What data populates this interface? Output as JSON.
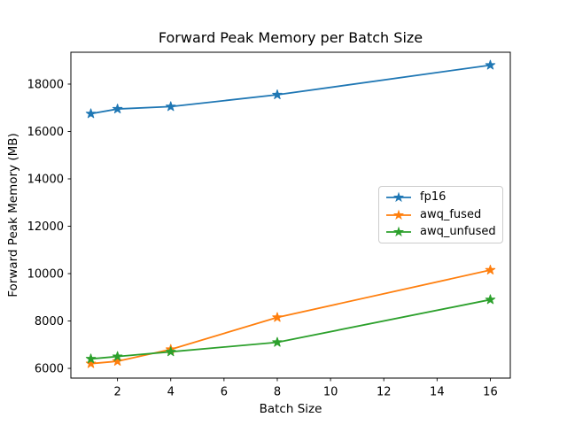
{
  "chart_data": {
    "type": "line",
    "title": "Forward Peak Memory per Batch Size",
    "xlabel": "Batch Size",
    "ylabel": "Forward Peak Memory (MB)",
    "x": [
      1,
      2,
      4,
      8,
      16
    ],
    "series": [
      {
        "name": "fp16",
        "color": "#1f77b4",
        "values": [
          16750,
          16950,
          17050,
          17550,
          18800
        ]
      },
      {
        "name": "awq_fused",
        "color": "#ff7f0e",
        "values": [
          6200,
          6300,
          6800,
          8150,
          10150
        ]
      },
      {
        "name": "awq_unfused",
        "color": "#2ca02c",
        "values": [
          6400,
          6500,
          6700,
          7100,
          8900
        ]
      }
    ],
    "marker": "star",
    "line_width": 1.8,
    "xlim": [
      0.25,
      16.75
    ],
    "ylim": [
      5590,
      19345
    ],
    "x_ticks": [
      2,
      4,
      6,
      8,
      10,
      12,
      14,
      16
    ],
    "y_ticks": [
      6000,
      8000,
      10000,
      12000,
      14000,
      16000,
      18000
    ],
    "grid": false,
    "legend_position": "center right",
    "axis_color": "#000000",
    "background_color": "#ffffff"
  }
}
